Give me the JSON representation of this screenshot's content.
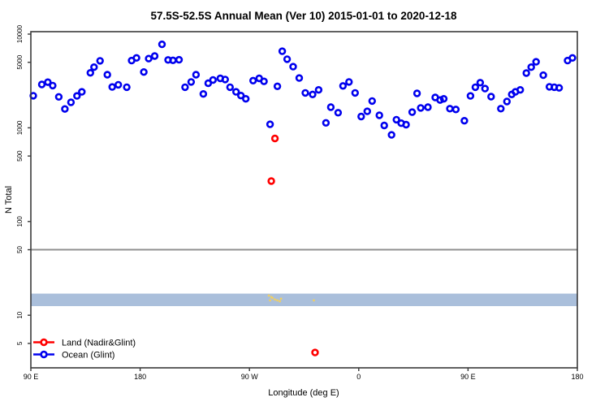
{
  "title": "57.5S-52.5S Annual Mean (Ver 10)   2015-01-01 to 2020-12-18",
  "colors": {
    "land": "#ff0000",
    "ocean": "#0000ee",
    "band": "#aabfdb",
    "yellow": "#f0cf62",
    "reference_line": "#909090",
    "axis": "#3a3a3a"
  },
  "legend": {
    "items": [
      {
        "label": "Land (Nadir&Glint)",
        "color": "#ff0000"
      },
      {
        "label": "Ocean (Glint)",
        "color": "#0000ee"
      }
    ]
  },
  "chart_data": {
    "type": "scatter",
    "title": "57.5S-52.5S Annual Mean (Ver 10)   2015-01-01 to 2020-12-18",
    "xlabel": "Longitude (deg E)",
    "ylabel": "N Total",
    "x_axis": {
      "range_deg_east": [
        90,
        540
      ],
      "ticks": [
        {
          "lon": 90,
          "label": "90 E"
        },
        {
          "lon": 180,
          "label": "180"
        },
        {
          "lon": 270,
          "label": "90 W"
        },
        {
          "lon": 360,
          "label": "0"
        },
        {
          "lon": 450,
          "label": "90 E"
        },
        {
          "lon": 540,
          "label": "180"
        }
      ]
    },
    "y_axis": {
      "scale": "log",
      "ticks": [
        10000,
        5000,
        1000,
        500,
        100,
        50,
        10,
        5
      ],
      "range": [
        3,
        10000
      ]
    },
    "reference_line": {
      "value": 50
    },
    "band": {
      "value_low": 12.5,
      "value_high": 17
    },
    "series": [
      {
        "name": "Ocean (Glint)",
        "marker": "open-circle",
        "color": "#0000ee",
        "points": [
          [
            92,
            2200
          ],
          [
            99,
            2900
          ],
          [
            104,
            3070
          ],
          [
            108,
            2820
          ],
          [
            113,
            2140
          ],
          [
            118,
            1590
          ],
          [
            123,
            1870
          ],
          [
            128,
            2190
          ],
          [
            132,
            2420
          ],
          [
            139,
            3860
          ],
          [
            142,
            4440
          ],
          [
            147,
            5190
          ],
          [
            153,
            3690
          ],
          [
            157,
            2730
          ],
          [
            162,
            2880
          ],
          [
            169,
            2710
          ],
          [
            173,
            5220
          ],
          [
            177,
            5570
          ],
          [
            183,
            3940
          ],
          [
            187,
            5470
          ],
          [
            192,
            5840
          ],
          [
            198,
            7780
          ],
          [
            203,
            5300
          ],
          [
            207,
            5250
          ],
          [
            212,
            5320
          ],
          [
            217,
            2710
          ],
          [
            222,
            3090
          ],
          [
            226,
            3690
          ],
          [
            232,
            2300
          ],
          [
            236,
            2990
          ],
          [
            240,
            3240
          ],
          [
            246,
            3370
          ],
          [
            250,
            3280
          ],
          [
            254,
            2710
          ],
          [
            259,
            2420
          ],
          [
            263,
            2210
          ],
          [
            267,
            2040
          ],
          [
            273,
            3190
          ],
          [
            278,
            3370
          ],
          [
            282,
            3130
          ],
          [
            287,
            1090
          ],
          [
            293,
            2770
          ],
          [
            297,
            6570
          ],
          [
            301,
            5400
          ],
          [
            306,
            4490
          ],
          [
            311,
            3400
          ],
          [
            316,
            2360
          ],
          [
            322,
            2270
          ],
          [
            327,
            2540
          ],
          [
            333,
            1130
          ],
          [
            337,
            1660
          ],
          [
            343,
            1450
          ],
          [
            347,
            2800
          ],
          [
            352,
            3090
          ],
          [
            357,
            2360
          ],
          [
            362,
            1320
          ],
          [
            367,
            1500
          ],
          [
            371,
            1930
          ],
          [
            377,
            1360
          ],
          [
            381,
            1060
          ],
          [
            387,
            840
          ],
          [
            391,
            1220
          ],
          [
            395,
            1120
          ],
          [
            399,
            1080
          ],
          [
            404,
            1470
          ],
          [
            408,
            2330
          ],
          [
            411,
            1630
          ],
          [
            417,
            1660
          ],
          [
            423,
            2110
          ],
          [
            427,
            1980
          ],
          [
            430,
            2040
          ],
          [
            435,
            1600
          ],
          [
            440,
            1570
          ],
          [
            447,
            1190
          ],
          [
            452,
            2190
          ],
          [
            456,
            2710
          ],
          [
            460,
            3030
          ],
          [
            464,
            2620
          ],
          [
            469,
            2150
          ],
          [
            477,
            1600
          ],
          [
            482,
            1910
          ],
          [
            486,
            2270
          ],
          [
            489,
            2420
          ],
          [
            493,
            2540
          ],
          [
            498,
            3840
          ],
          [
            502,
            4440
          ],
          [
            506,
            5060
          ],
          [
            512,
            3640
          ],
          [
            517,
            2740
          ],
          [
            521,
            2710
          ],
          [
            525,
            2670
          ],
          [
            532,
            5220
          ],
          [
            536,
            5570
          ]
        ]
      },
      {
        "name": "Land (Nadir&Glint)",
        "marker": "open-circle",
        "color": "#ff0000",
        "points": [
          [
            291,
            770
          ],
          [
            288,
            270
          ],
          [
            324,
            4
          ]
        ]
      },
      {
        "name": "small-yellow-marks",
        "marker": "dot",
        "color": "#f0cf62",
        "points": [
          [
            286,
            16.2
          ],
          [
            288,
            15.6
          ],
          [
            289,
            15.3
          ],
          [
            291,
            14.7
          ],
          [
            293,
            14.4
          ],
          [
            295,
            14.1
          ],
          [
            287,
            14.4
          ],
          [
            296,
            15.0
          ],
          [
            323,
            14.4
          ]
        ]
      }
    ]
  }
}
